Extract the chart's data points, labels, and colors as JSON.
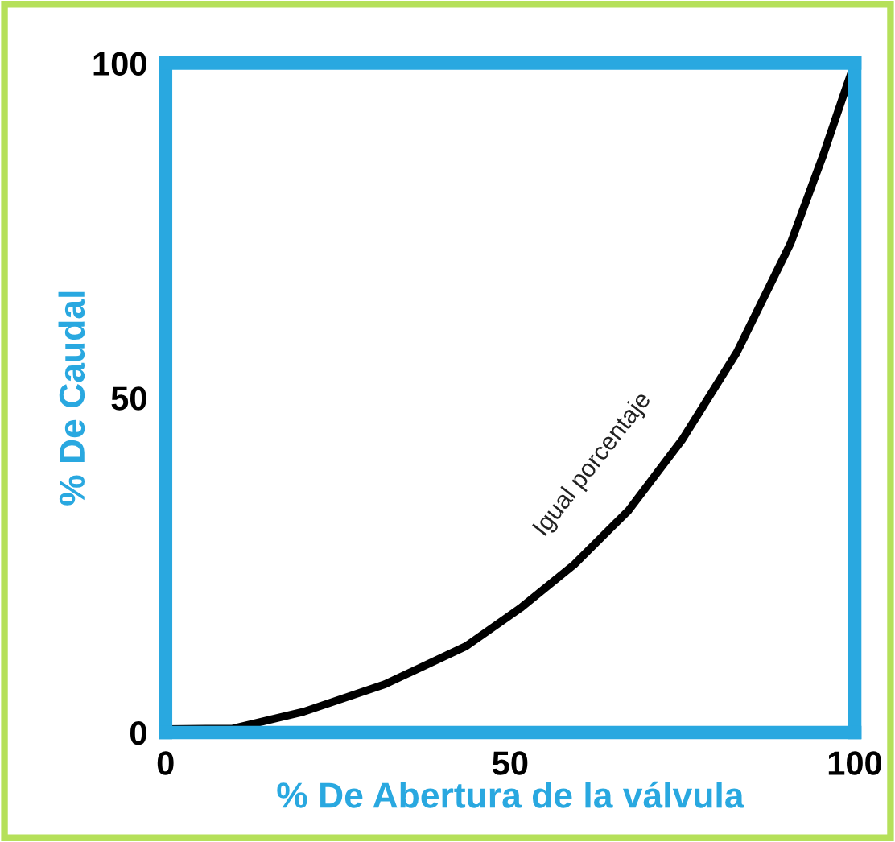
{
  "chart_data": {
    "type": "line",
    "xlabel": "% De Abertura de la válvula",
    "ylabel": "% De Caudal",
    "x": [
      0,
      9.8,
      20,
      31.8,
      43.6,
      51.5,
      59.3,
      67.2,
      75,
      82.9,
      90.7,
      95.4,
      98.6,
      100
    ],
    "series": [
      {
        "color": "#000000",
        "values": [
          0.5,
          0.6,
          3.1,
          7.2,
          12.9,
          18.6,
          25.1,
          33.2,
          43.8,
          56.8,
          73.1,
          86.2,
          95.9,
          100
        ]
      }
    ],
    "annotations": [
      "Igual porcentaje"
    ],
    "xlim": [
      0,
      100
    ],
    "ylim": [
      0,
      100
    ],
    "xticks": [
      0,
      50,
      100
    ],
    "yticks": [
      0,
      50,
      100
    ],
    "grid": false,
    "legend": false,
    "marker": "none",
    "line_style": "solid"
  }
}
